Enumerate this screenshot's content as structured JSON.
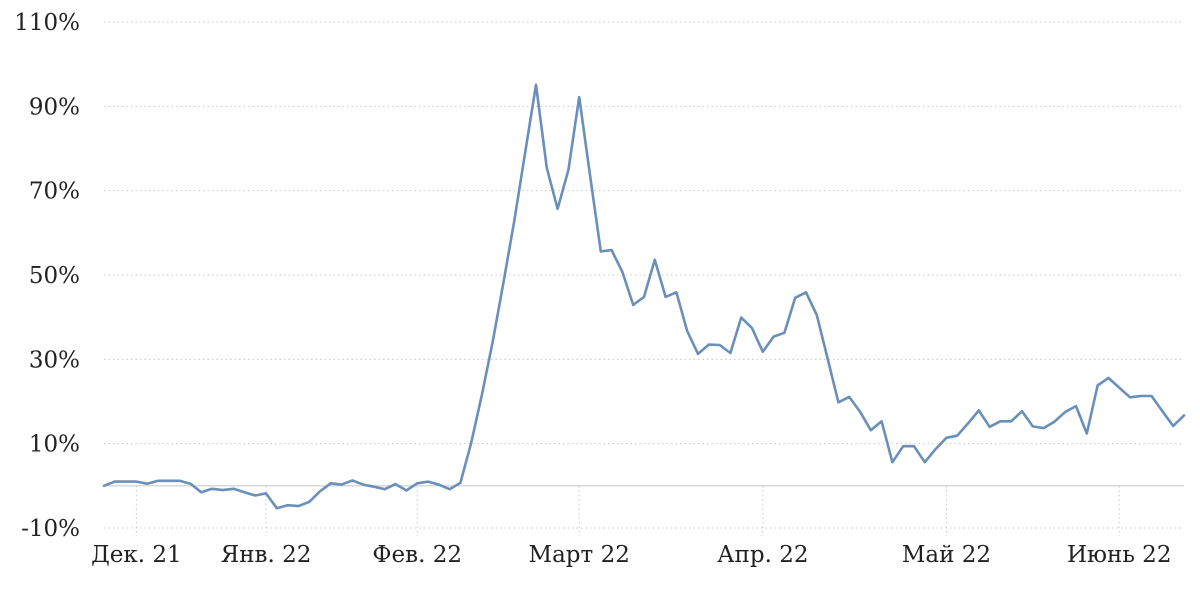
{
  "chart_data": {
    "type": "line",
    "y_ticks": [
      "110%",
      "90%",
      "70%",
      "50%",
      "30%",
      "10%",
      "-10%"
    ],
    "y_tick_values": [
      110,
      90,
      70,
      50,
      30,
      10,
      -10
    ],
    "x_tick_labels": [
      "Дек. 21",
      "Янв. 22",
      "Фев. 22",
      "Март 22",
      "Апр. 22",
      "Май 22",
      "Июнь 22"
    ],
    "x_tick_index": [
      3,
      15,
      29,
      44,
      61,
      78,
      94
    ],
    "ylim": [
      -10,
      110
    ],
    "grid": true,
    "series": [
      {
        "color": "#6a8fba",
        "values": [
          0,
          1,
          1,
          1,
          0.5,
          1.2,
          1.2,
          1.2,
          0.5,
          -1.5,
          -0.7,
          -1,
          -0.7,
          -1.5,
          -2.3,
          -1.8,
          -5.3,
          -4.6,
          -4.8,
          -3.8,
          -1.3,
          0.6,
          0.3,
          1.3,
          0.3,
          -0.2,
          -0.8,
          0.4,
          -1.1,
          0.6,
          1,
          0.3,
          -0.8,
          0.7,
          10.2,
          21.7,
          34.3,
          48.4,
          63,
          79.1,
          95.1,
          75.4,
          65.7,
          74.9,
          92.2,
          73.7,
          55.6,
          55.9,
          50.7,
          42.9,
          44.8,
          53.6,
          44.8,
          45.9,
          36.7,
          31.3,
          33.5,
          33.4,
          31.5,
          39.9,
          37.4,
          31.8,
          35.4,
          36.3,
          44.6,
          45.9,
          40.5,
          30.2,
          19.8,
          21.1,
          17.6,
          13.2,
          15.3,
          5.6,
          9.4,
          9.4,
          5.6,
          8.7,
          11.4,
          11.9,
          14.8,
          17.9,
          14,
          15.3,
          15.3,
          17.7,
          14.1,
          13.7,
          15.2,
          17.5,
          18.9,
          12.4,
          23.8,
          25.6,
          23.3,
          21,
          21.3,
          21.3,
          17.7,
          14.2,
          16.7
        ]
      }
    ]
  }
}
